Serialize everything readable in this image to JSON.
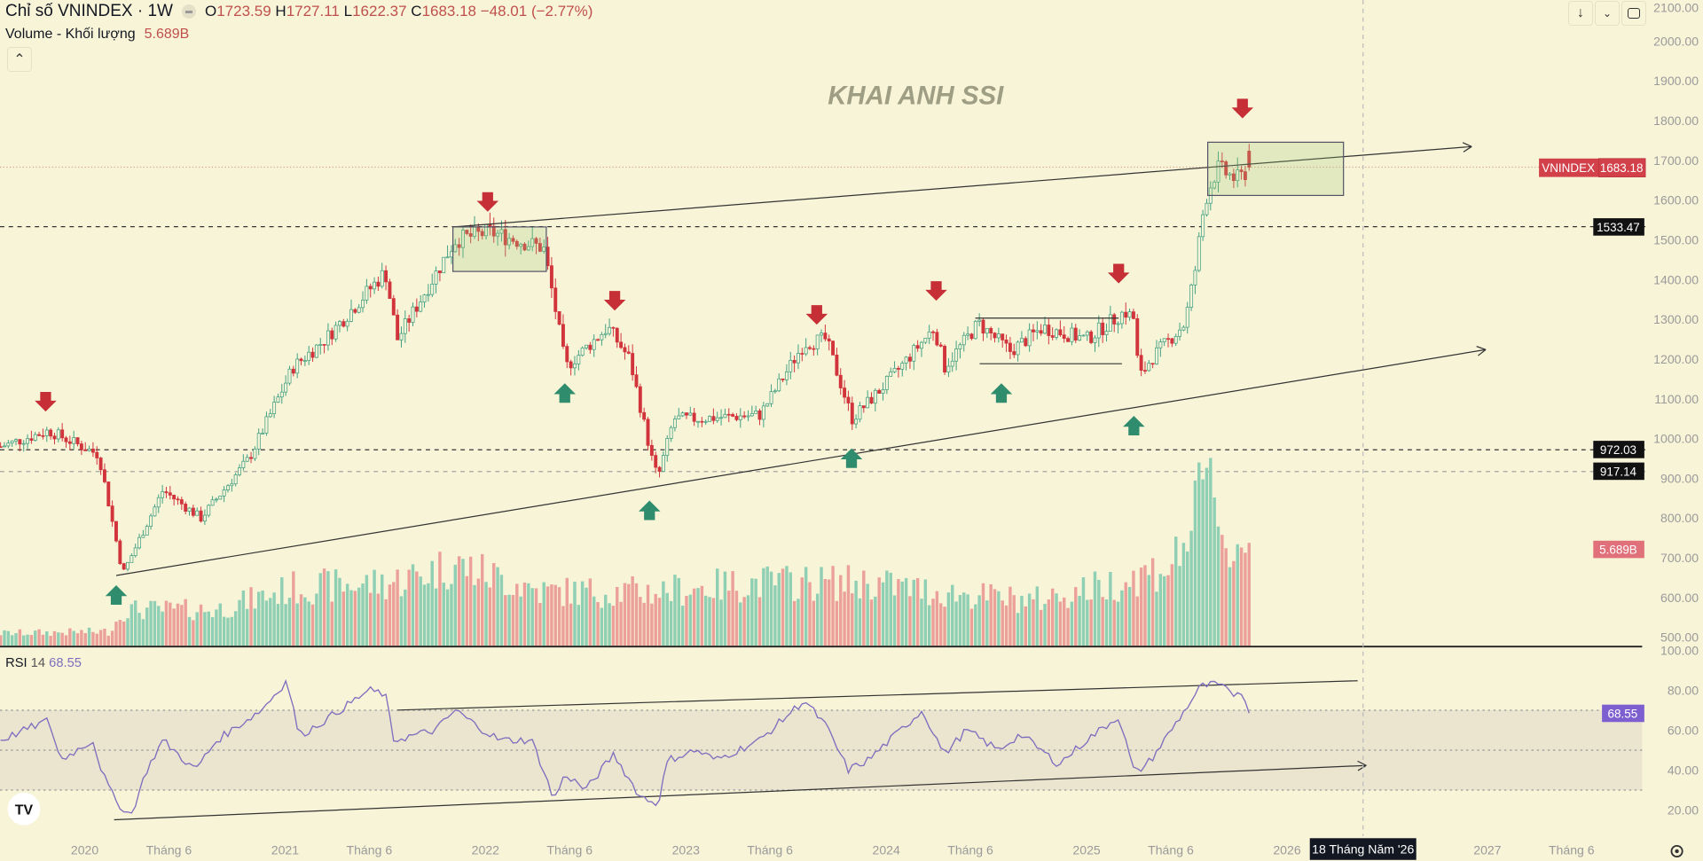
{
  "header": {
    "title": "Chỉ số VNINDEX · 1W",
    "ohlc": {
      "o_label": "O",
      "o": "1723.59",
      "h_label": "H",
      "h": "1727.11",
      "l_label": "L",
      "l": "1622.37",
      "c_label": "C",
      "c": "1683.18",
      "change": "−48.01 (−2.77%)"
    },
    "volume_label": "Volume - Khối lượng",
    "volume_value": "5.689B",
    "collapse_icon": "chevron-up-icon"
  },
  "toolbar": {
    "icons": [
      "arrow-down-icon",
      "collapse-icon",
      "fullscreen-icon"
    ]
  },
  "watermark": "KHAI ANH SSI",
  "price_axis": {
    "ticks": [
      "2100.00",
      "2000.00",
      "1900.00",
      "1800.00",
      "1700.00",
      "1600.00",
      "1500.00",
      "1400.00",
      "1300.00",
      "1200.00",
      "1100.00",
      "1000.00",
      "900.00",
      "800.00",
      "700.00",
      "600.00",
      "500.00"
    ],
    "symbol_label": "VNINDEX",
    "last_price": "1683.18",
    "levels": [
      "1533.47",
      "972.03",
      "917.14"
    ],
    "volume_badge": "5.689B"
  },
  "rsi": {
    "label": "RSI",
    "period": "14",
    "value": "68.55",
    "ticks": [
      "100.00",
      "80.00",
      "60.00",
      "40.00",
      "20.00"
    ]
  },
  "time_axis": {
    "ticks": [
      "2020",
      "Tháng 6",
      "2021",
      "Tháng 6",
      "2022",
      "Tháng 6",
      "2023",
      "Tháng 6",
      "2024",
      "Tháng 6",
      "2025",
      "Tháng 6",
      "2026",
      "2027",
      "Tháng 6"
    ],
    "crosshair_date": "18 Tháng Năm '26"
  },
  "colors": {
    "background": "#f8f4d8",
    "up": "#3f9f80",
    "down": "#d2343c",
    "rsi": "#7e6fbf",
    "signal_down": "#c62f36",
    "signal_up": "#2f8c6c"
  },
  "chart_data": {
    "type": "candlestick",
    "title": "VNINDEX weekly",
    "x_unit": "year",
    "price_keypoints": [
      [
        2019.58,
        980
      ],
      [
        2019.82,
        1020
      ],
      [
        2020.07,
        960
      ],
      [
        2020.19,
        660
      ],
      [
        2020.39,
        870
      ],
      [
        2020.58,
        800
      ],
      [
        2020.82,
        950
      ],
      [
        2021.04,
        1180
      ],
      [
        2021.2,
        1250
      ],
      [
        2021.5,
        1420
      ],
      [
        2021.56,
        1250
      ],
      [
        2021.85,
        1500
      ],
      [
        2022.02,
        1520
      ],
      [
        2022.29,
        1480
      ],
      [
        2022.34,
        1350
      ],
      [
        2022.4,
        1180
      ],
      [
        2022.61,
        1280
      ],
      [
        2022.72,
        1200
      ],
      [
        2022.83,
        950
      ],
      [
        2022.86,
        900
      ],
      [
        2022.94,
        1050
      ],
      [
        2023.05,
        1050
      ],
      [
        2023.37,
        1060
      ],
      [
        2023.59,
        1240
      ],
      [
        2023.7,
        1250
      ],
      [
        2023.83,
        1050
      ],
      [
        2024.02,
        1150
      ],
      [
        2024.24,
        1280
      ],
      [
        2024.29,
        1180
      ],
      [
        2024.46,
        1290
      ],
      [
        2024.62,
        1220
      ],
      [
        2024.78,
        1280
      ],
      [
        2025.0,
        1250
      ],
      [
        2025.19,
        1320
      ],
      [
        2025.24,
        1300
      ],
      [
        2025.26,
        1150
      ],
      [
        2025.32,
        1200
      ],
      [
        2025.49,
        1290
      ],
      [
        2025.54,
        1420
      ],
      [
        2025.59,
        1600
      ],
      [
        2025.65,
        1680
      ],
      [
        2025.76,
        1650
      ],
      [
        2025.81,
        1683.18
      ]
    ],
    "volume_keypoints_B": [
      [
        2019.58,
        0.7
      ],
      [
        2020.12,
        0.8
      ],
      [
        2020.2,
        2
      ],
      [
        2020.66,
        2
      ],
      [
        2021.04,
        3.2
      ],
      [
        2021.53,
        3.5
      ],
      [
        2021.85,
        4.5
      ],
      [
        2022.29,
        3
      ],
      [
        2022.83,
        3
      ],
      [
        2023.37,
        3.5
      ],
      [
        2023.91,
        3.5
      ],
      [
        2024.24,
        3
      ],
      [
        2024.73,
        2.5
      ],
      [
        2025.16,
        3.5
      ],
      [
        2025.43,
        4.5
      ],
      [
        2025.54,
        7
      ],
      [
        2025.59,
        9
      ],
      [
        2025.65,
        8.5
      ],
      [
        2025.7,
        5
      ],
      [
        2025.78,
        5.5
      ],
      [
        2025.81,
        5.689
      ]
    ],
    "rsi_keypoints": [
      [
        2019.58,
        55
      ],
      [
        2019.82,
        65
      ],
      [
        2019.88,
        45
      ],
      [
        2020.04,
        55
      ],
      [
        2020.09,
        38
      ],
      [
        2020.15,
        25
      ],
      [
        2020.23,
        17
      ],
      [
        2020.31,
        40
      ],
      [
        2020.39,
        55
      ],
      [
        2020.55,
        40
      ],
      [
        2020.66,
        55
      ],
      [
        2020.88,
        70
      ],
      [
        2021.01,
        85
      ],
      [
        2021.07,
        57
      ],
      [
        2021.2,
        65
      ],
      [
        2021.42,
        80
      ],
      [
        2021.5,
        78
      ],
      [
        2021.54,
        55
      ],
      [
        2021.75,
        60
      ],
      [
        2021.85,
        70
      ],
      [
        2021.96,
        62
      ],
      [
        2022.07,
        55
      ],
      [
        2022.23,
        55
      ],
      [
        2022.29,
        40
      ],
      [
        2022.34,
        25
      ],
      [
        2022.4,
        38
      ],
      [
        2022.5,
        30
      ],
      [
        2022.64,
        48
      ],
      [
        2022.72,
        35
      ],
      [
        2022.77,
        27
      ],
      [
        2022.86,
        23
      ],
      [
        2022.91,
        45
      ],
      [
        2023.05,
        50
      ],
      [
        2023.15,
        45
      ],
      [
        2023.37,
        55
      ],
      [
        2023.59,
        75
      ],
      [
        2023.7,
        62
      ],
      [
        2023.81,
        40
      ],
      [
        2023.91,
        45
      ],
      [
        2024.18,
        70
      ],
      [
        2024.29,
        48
      ],
      [
        2024.4,
        60
      ],
      [
        2024.56,
        50
      ],
      [
        2024.67,
        58
      ],
      [
        2024.86,
        43
      ],
      [
        2025.0,
        55
      ],
      [
        2025.16,
        67
      ],
      [
        2025.24,
        38
      ],
      [
        2025.32,
        45
      ],
      [
        2025.49,
        70
      ],
      [
        2025.57,
        82
      ],
      [
        2025.65,
        83
      ],
      [
        2025.73,
        78
      ],
      [
        2025.78,
        80
      ],
      [
        2025.81,
        68.55
      ]
    ],
    "price_levels": [
      1533.47,
      972.03,
      917.14,
      1683.18
    ],
    "price_range": [
      450,
      2110
    ],
    "rsi_range": [
      10,
      100
    ],
    "rsi_bands": [
      70,
      50,
      30
    ]
  }
}
